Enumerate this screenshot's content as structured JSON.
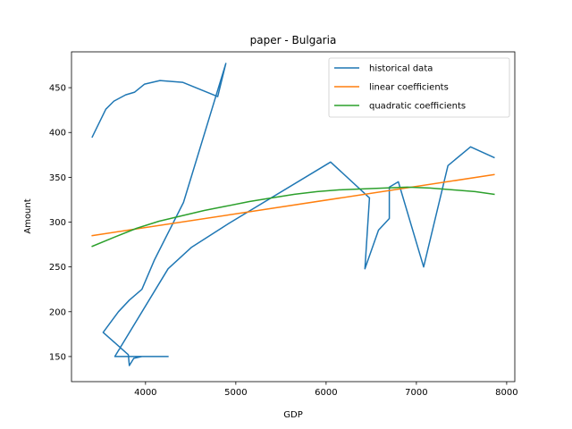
{
  "chart_data": {
    "type": "line",
    "title": "paper - Bulgaria",
    "xlabel": "GDP",
    "ylabel": "Amount",
    "xlim": [
      3180,
      8090
    ],
    "ylim": [
      122,
      490
    ],
    "xticks": [
      4000,
      5000,
      6000,
      7000,
      8000
    ],
    "yticks": [
      150,
      200,
      250,
      300,
      350,
      400,
      450
    ],
    "grid": false,
    "legend_position": "top-right",
    "series": [
      {
        "name": "historical data",
        "color": "#1f77b4",
        "x": [
          3410,
          3560,
          3650,
          3780,
          3880,
          3990,
          4160,
          4410,
          4800,
          4890,
          4420,
          4100,
          3960,
          3820,
          3700,
          3530,
          3810,
          3820,
          3870,
          3960,
          4250,
          3660,
          4250,
          4510,
          4930,
          6050,
          6480,
          6430,
          6580,
          6700,
          6700,
          6800,
          7080,
          7350,
          7600,
          7860
        ],
        "y": [
          395,
          426,
          435,
          442,
          445,
          454,
          458,
          456,
          440,
          477,
          322,
          258,
          225,
          213,
          200,
          177,
          152,
          140,
          148,
          150,
          150,
          150,
          248,
          272,
          299,
          367,
          327,
          248,
          291,
          304,
          339,
          345,
          250,
          363,
          384,
          372
        ]
      },
      {
        "name": "linear coefficients",
        "color": "#ff7f0e",
        "x": [
          3410,
          7860
        ],
        "y": [
          285,
          353
        ]
      },
      {
        "name": "quadratic coefficients",
        "color": "#2ca02c",
        "x": [
          3410,
          3650,
          3900,
          4150,
          4400,
          4650,
          4900,
          5150,
          5400,
          5650,
          5900,
          6150,
          6400,
          6650,
          6900,
          7150,
          7400,
          7650,
          7860
        ],
        "y": [
          273,
          283,
          293,
          301,
          307,
          313,
          318,
          323,
          327,
          331,
          334,
          336,
          337,
          338,
          339,
          338,
          336,
          334,
          331
        ]
      }
    ]
  }
}
